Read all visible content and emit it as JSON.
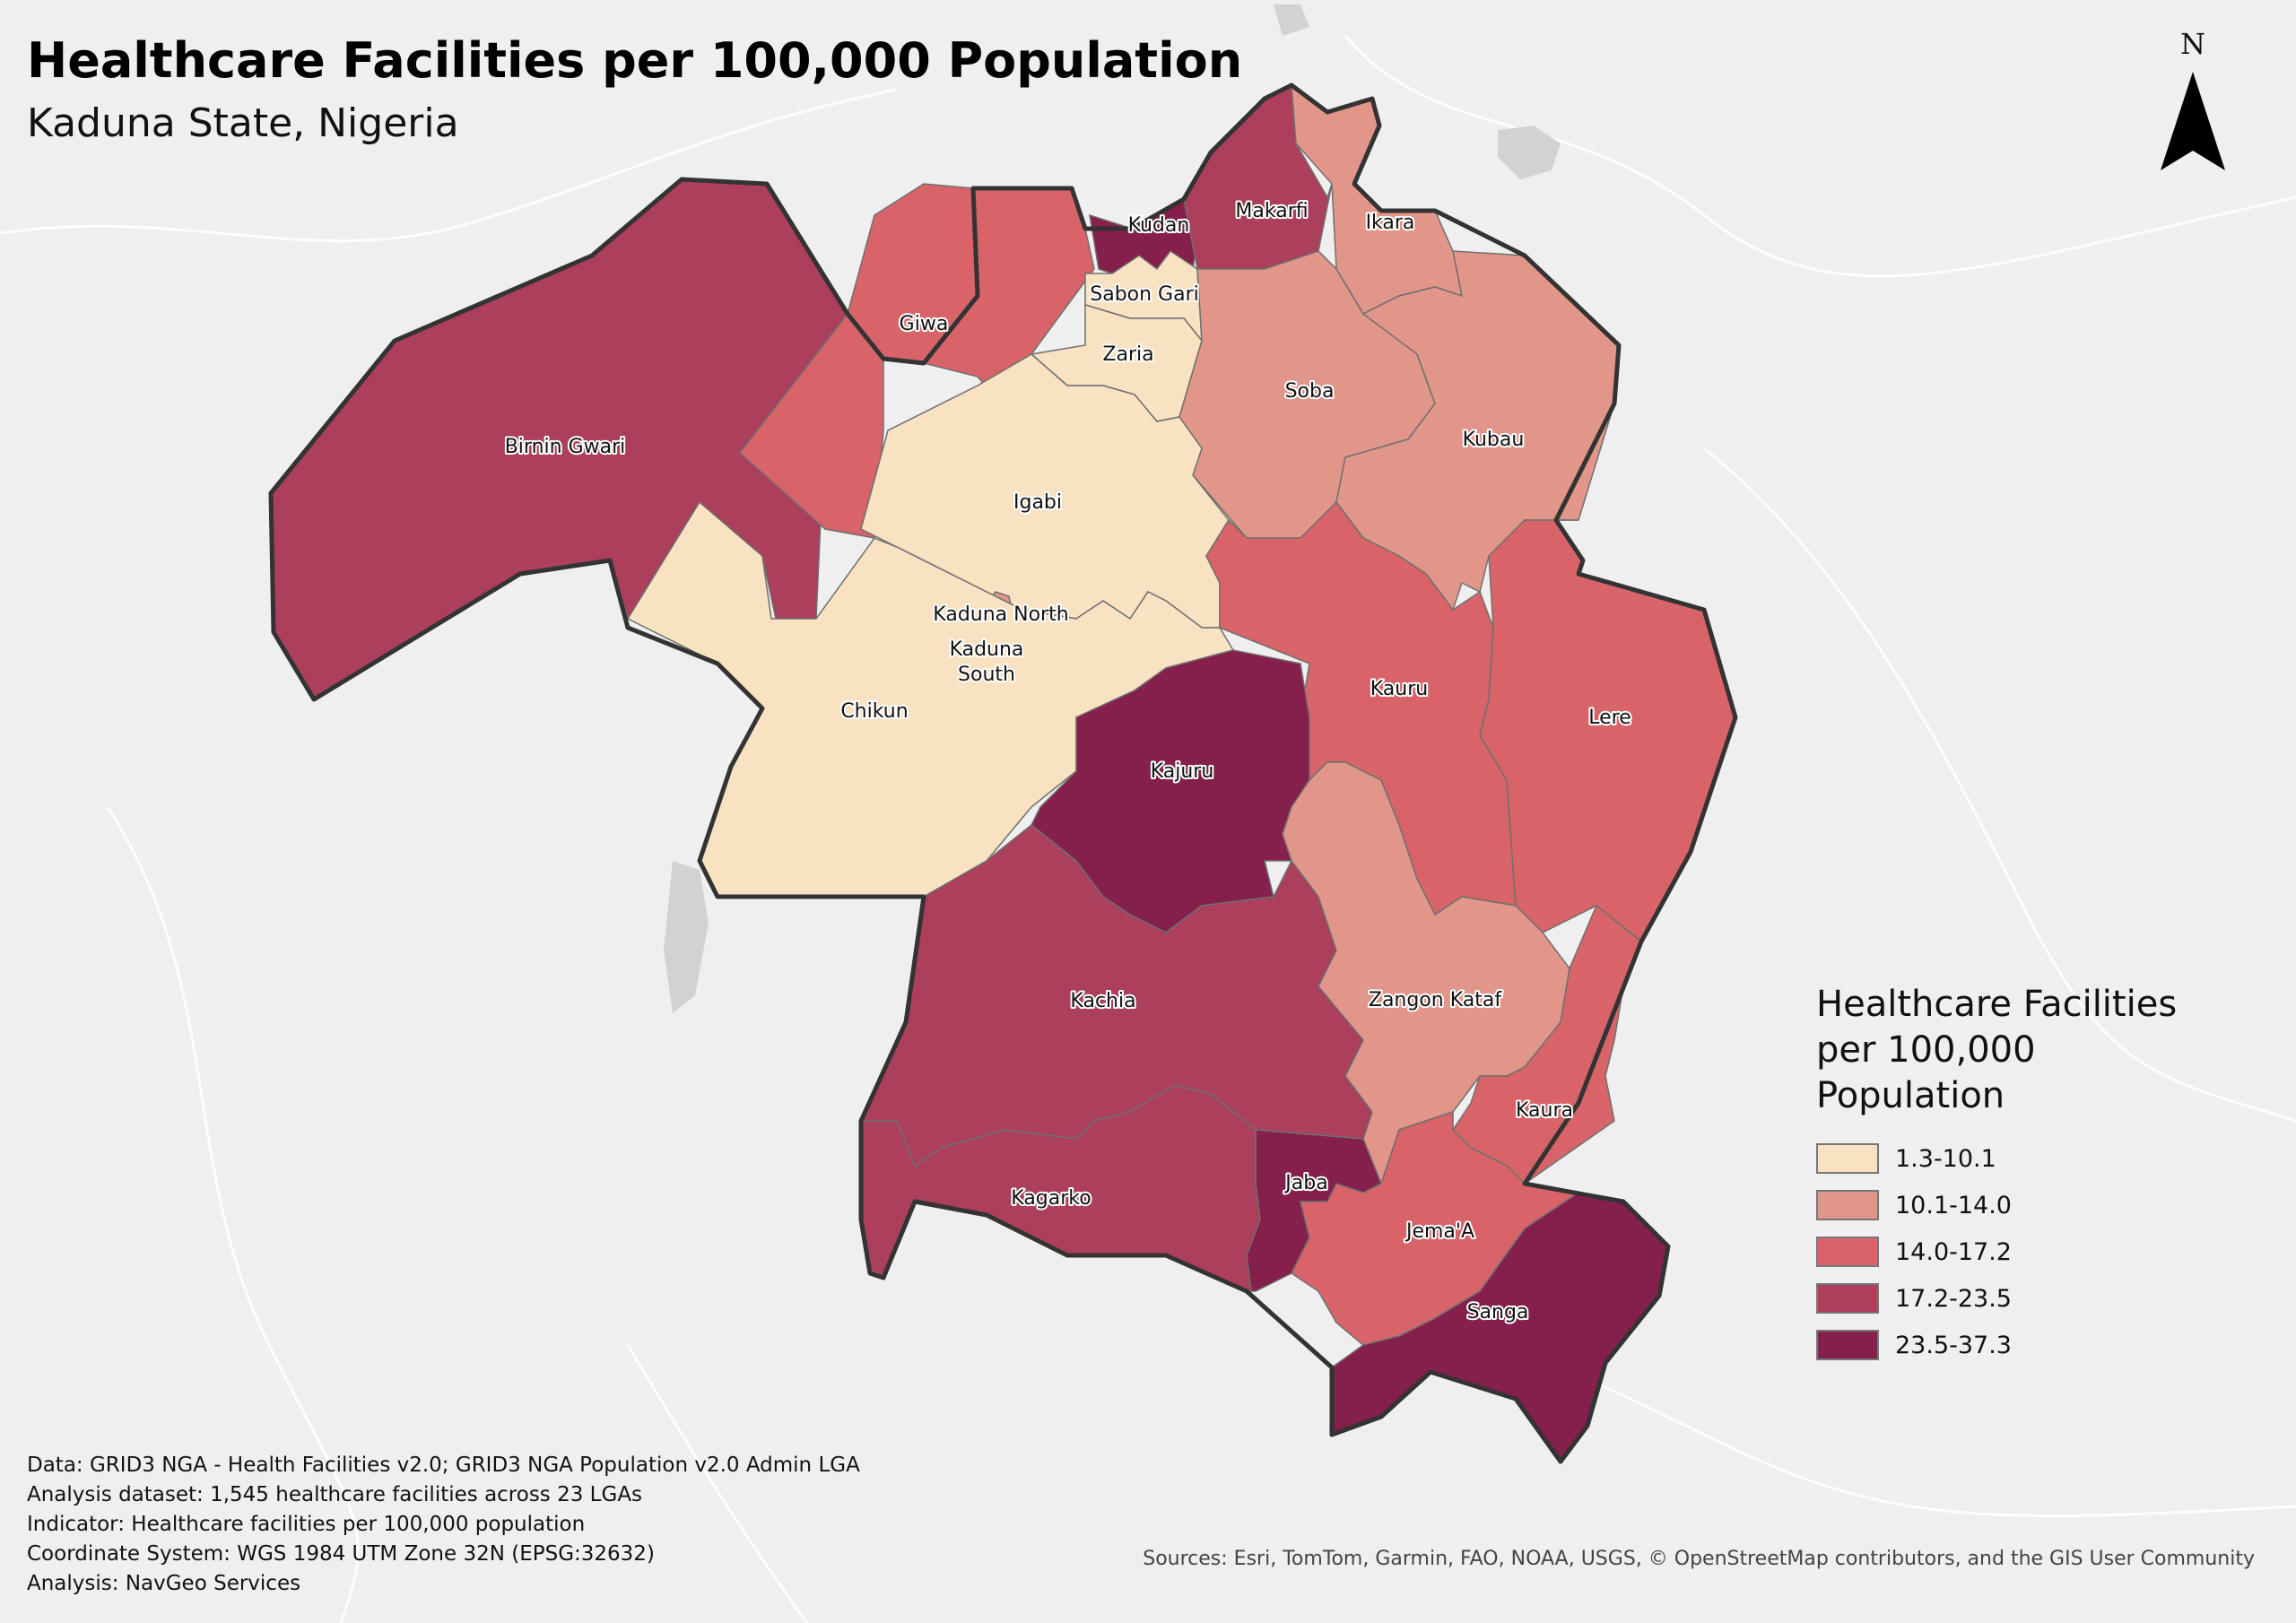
{
  "title": "Healthcare Facilities per 100,000 Population",
  "subtitle": "Kaduna State, Nigeria",
  "north_arrow": {
    "letter": "N"
  },
  "legend": {
    "title_lines": [
      "Healthcare Facilities",
      "per 100,000",
      "Population"
    ],
    "classes": [
      {
        "label": "1.3-10.1",
        "color": "#f8e2c2"
      },
      {
        "label": "10.1-14.0",
        "color": "#e2968a"
      },
      {
        "label": "14.0-17.2",
        "color": "#d8646a"
      },
      {
        "label": "17.2-23.5",
        "color": "#ab3f5c"
      },
      {
        "label": "23.5-37.3",
        "color": "#851f4c"
      }
    ]
  },
  "lgas": [
    {
      "name": "Birnin Gwari",
      "class": 3
    },
    {
      "name": "Giwa",
      "class": 2
    },
    {
      "name": "Kudan",
      "class": 4
    },
    {
      "name": "Makarfi",
      "class": 3
    },
    {
      "name": "Ikara",
      "class": 1
    },
    {
      "name": "Sabon Gari",
      "class": 0
    },
    {
      "name": "Zaria",
      "class": 0
    },
    {
      "name": "Soba",
      "class": 1
    },
    {
      "name": "Kubau",
      "class": 1
    },
    {
      "name": "Igabi",
      "class": 0
    },
    {
      "name": "Kaduna North",
      "class": 1
    },
    {
      "name": "Kaduna South",
      "class": 1
    },
    {
      "name": "Chikun",
      "class": 0
    },
    {
      "name": "Kauru",
      "class": 2
    },
    {
      "name": "Lere",
      "class": 2
    },
    {
      "name": "Kajuru",
      "class": 4
    },
    {
      "name": "Kachia",
      "class": 3
    },
    {
      "name": "Zangon Kataf",
      "class": 1
    },
    {
      "name": "Kaura",
      "class": 2
    },
    {
      "name": "Jaba",
      "class": 4
    },
    {
      "name": "Kagarko",
      "class": 3
    },
    {
      "name": "Jema'A",
      "class": 2
    },
    {
      "name": "Sanga",
      "class": 4
    }
  ],
  "credits": [
    "Data: GRID3 NGA - Health Facilities v2.0; GRID3 NGA Population v2.0 Admin LGA",
    "Analysis dataset: 1,545 healthcare facilities across 23 LGAs",
    "Indicator: Healthcare facilities per 100,000 population",
    "Coordinate System: WGS 1984 UTM Zone 32N (EPSG:32632)",
    "Analysis: NavGeo Services"
  ],
  "sources": "Sources: Esri, TomTom, Garmin, FAO, NOAA, USGS, © OpenStreetMap contributors, and the GIS User Community"
}
